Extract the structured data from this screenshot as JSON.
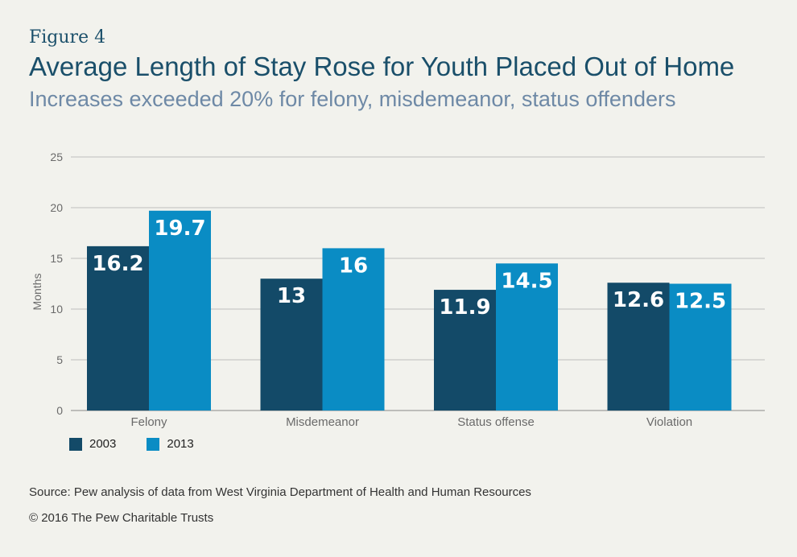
{
  "figure_label": "Figure 4",
  "source": "Source: Pew analysis of data from West Virginia Department of Health and Human Resources",
  "copyright": "© 2016 The Pew Charitable Trusts",
  "colors": {
    "series_2003": "#134a68",
    "series_2013": "#0a8cc4",
    "grid": "#bdbdbd",
    "text": "#1a4f6a"
  },
  "chart_data": {
    "type": "bar",
    "title": "Average Length of Stay Rose for Youth Placed Out of Home",
    "subtitle": "Increases exceeded 20% for felony, misdemeanor, status offenders",
    "ylabel": "Months",
    "xlabel": "",
    "ylim": [
      0,
      25
    ],
    "yticks": [
      0,
      5,
      10,
      15,
      20,
      25
    ],
    "categories": [
      "Felony",
      "Misdemeanor",
      "Status offense",
      "Violation"
    ],
    "series": [
      {
        "name": "2003",
        "values": [
          16.2,
          13,
          11.9,
          12.6
        ],
        "labels": [
          "16.2",
          "13",
          "11.9",
          "12.6"
        ]
      },
      {
        "name": "2013",
        "values": [
          19.7,
          16,
          14.5,
          12.5
        ],
        "labels": [
          "19.7",
          "16",
          "14.5",
          "12.5"
        ]
      }
    ],
    "grid": true,
    "legend_position": "bottom-left"
  }
}
